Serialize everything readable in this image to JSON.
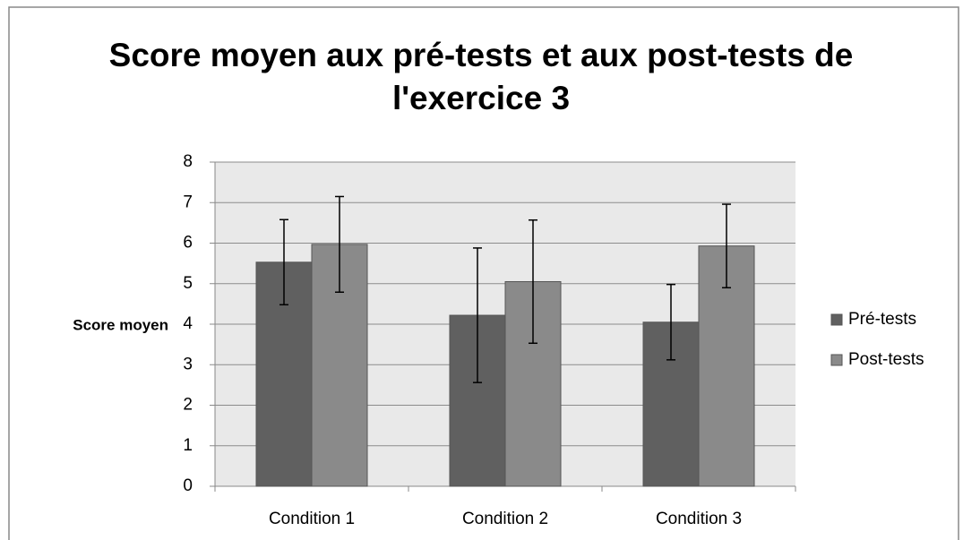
{
  "chart_data": {
    "type": "bar",
    "title": "Score moyen aux pré-tests et aux post-tests de l'exercice 3",
    "y_label": "Score moyen",
    "categories": [
      "Condition 1",
      "Condition 2",
      "Condition 3"
    ],
    "series": [
      {
        "name": "Pré-tests",
        "color": "#606060",
        "values": [
          5.53,
          4.22,
          4.05
        ],
        "errors": [
          1.05,
          1.66,
          0.93
        ]
      },
      {
        "name": "Post-tests",
        "color": "#8a8a8a",
        "values": [
          5.97,
          5.05,
          5.93
        ],
        "errors": [
          1.18,
          1.52,
          1.03
        ]
      }
    ],
    "ylim": [
      0,
      8
    ],
    "yticks": [
      0,
      1,
      2,
      3,
      4,
      5,
      6,
      7,
      8
    ],
    "grid": true,
    "legend": "right"
  }
}
